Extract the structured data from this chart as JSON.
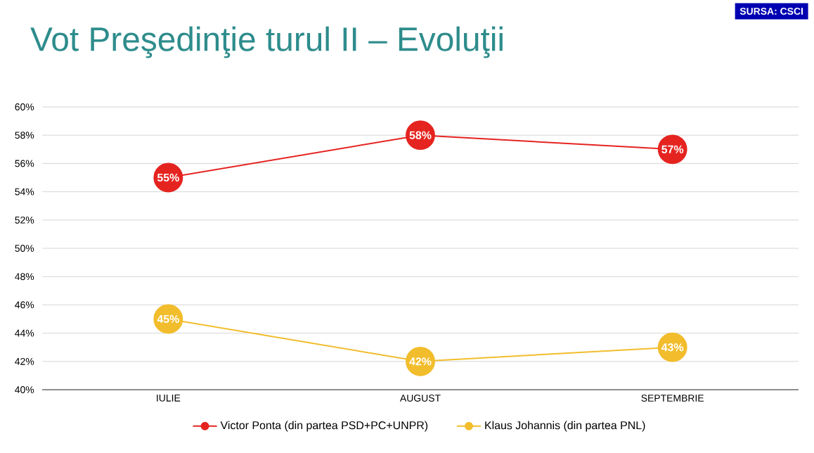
{
  "chart_data": {
    "type": "line",
    "title": "Vot Preşedinţie turul II – Evoluţii",
    "annotations": [
      "SURSA: CSCI"
    ],
    "categories": [
      "IULIE",
      "AUGUST",
      "SEPTEMBRIE"
    ],
    "series": [
      {
        "name": "Victor Ponta (din partea PSD+PC+UNPR)",
        "color": "#e52420",
        "values": [
          55,
          58,
          57
        ],
        "value_labels": [
          "55%",
          "58%",
          "57%"
        ]
      },
      {
        "name": "Klaus Johannis (din partea PNL)",
        "color": "#f2bd2c",
        "values": [
          45,
          42,
          43
        ],
        "value_labels": [
          "45%",
          "42%",
          "43%"
        ]
      }
    ],
    "ylim": [
      40,
      60
    ],
    "yticks": [
      {
        "value": 40,
        "label": "40%"
      },
      {
        "value": 42,
        "label": "42%"
      },
      {
        "value": 44,
        "label": "44%"
      },
      {
        "value": 46,
        "label": "46%"
      },
      {
        "value": 48,
        "label": "48%"
      },
      {
        "value": 50,
        "label": "50%"
      },
      {
        "value": 52,
        "label": "52%"
      },
      {
        "value": 54,
        "label": "54%"
      },
      {
        "value": 56,
        "label": "56%"
      },
      {
        "value": 58,
        "label": "58%"
      },
      {
        "value": 60,
        "label": "60%"
      }
    ],
    "grid": "y",
    "legend": "bottom",
    "marker": "circle",
    "line_style": "solid"
  }
}
